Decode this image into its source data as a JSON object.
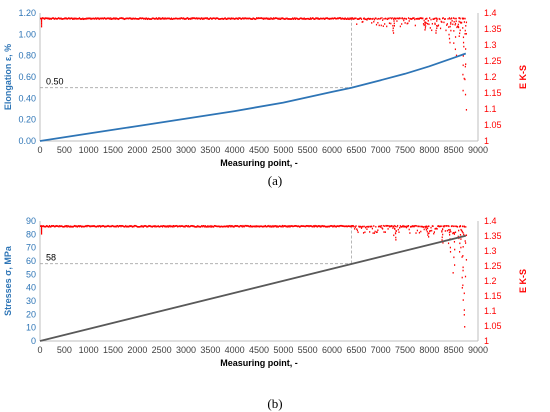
{
  "captions": [
    "(a)",
    "(b)"
  ],
  "chart_data": [
    {
      "type": "line",
      "panel": "(a)",
      "xlabel": "Measuring point, -",
      "ylabel": "Elongation ε, %",
      "y2label": "E K-S",
      "xlim": [
        0,
        9000
      ],
      "ylim": [
        0,
        1.2
      ],
      "y2lim": [
        1,
        1.4
      ],
      "xticks": [
        "0",
        "500",
        "1000",
        "1500",
        "2000",
        "2500",
        "3000",
        "3500",
        "4000",
        "4500",
        "5000",
        "5500",
        "6000",
        "6500",
        "7000",
        "7500",
        "8000",
        "8500",
        "9000"
      ],
      "yticks": [
        "0.00",
        "0.20",
        "0.40",
        "0.60",
        "0.80",
        "1.00",
        "1.20"
      ],
      "y2ticks": [
        "1",
        "1.05",
        "1.1",
        "1.15",
        "1.2",
        "1.25",
        "1.3",
        "1.35",
        "1.4"
      ],
      "reference_label": "0.50",
      "reference_point": {
        "x": 6400,
        "y": 0.5
      },
      "series": [
        {
          "axis": "left",
          "color": "#2e75b6",
          "x": [
            0,
            1000,
            2000,
            3000,
            4000,
            5000,
            6000,
            6400,
            7000,
            7500,
            8000,
            8500,
            8750
          ],
          "y": [
            0.0,
            0.07,
            0.14,
            0.21,
            0.28,
            0.36,
            0.46,
            0.5,
            0.57,
            0.63,
            0.7,
            0.78,
            0.82
          ]
        },
        {
          "axis": "right",
          "style": "scatter",
          "color": "#ff0000",
          "baseline": 1.385,
          "x_end": 8750,
          "noise_start": 6400,
          "spikes": [
            {
              "x": 7270,
              "y": 1.34
            },
            {
              "x": 7900,
              "y": 1.35
            },
            {
              "x": 8130,
              "y": 1.34
            },
            {
              "x": 8420,
              "y": 1.31
            },
            {
              "x": 8520,
              "y": 1.27
            },
            {
              "x": 8600,
              "y": 1.33
            },
            {
              "x": 8680,
              "y": 1.21
            },
            {
              "x": 8700,
              "y": 1.16
            },
            {
              "x": 8730,
              "y": 1.1
            }
          ]
        }
      ]
    },
    {
      "type": "line",
      "panel": "(b)",
      "xlabel": "Measuring point, -",
      "ylabel": "Stresses σ, MPa",
      "y2label": "E K-S",
      "xlim": [
        0,
        9000
      ],
      "ylim": [
        0,
        90
      ],
      "y2lim": [
        1,
        1.4
      ],
      "xticks": [
        "0",
        "500",
        "1000",
        "1500",
        "2000",
        "2500",
        "3000",
        "3500",
        "4000",
        "4500",
        "5000",
        "5500",
        "6000",
        "6500",
        "7000",
        "7500",
        "8000",
        "8500",
        "9000"
      ],
      "yticks": [
        "0",
        "10",
        "20",
        "30",
        "40",
        "50",
        "60",
        "70",
        "80",
        "90"
      ],
      "y2ticks": [
        "1",
        "1.05",
        "1.1",
        "1.15",
        "1.2",
        "1.25",
        "1.3",
        "1.35",
        "1.4"
      ],
      "reference_label": "58",
      "reference_point": {
        "x": 6400,
        "y": 58
      },
      "series": [
        {
          "axis": "left",
          "color": "#595959",
          "x": [
            0,
            8750
          ],
          "y": [
            0,
            79
          ]
        },
        {
          "axis": "right",
          "style": "scatter",
          "color": "#ff0000",
          "baseline": 1.385,
          "x_end": 8750,
          "noise_start": 6400,
          "spikes": [
            {
              "x": 7280,
              "y": 1.34
            },
            {
              "x": 7950,
              "y": 1.35
            },
            {
              "x": 8250,
              "y": 1.33
            },
            {
              "x": 8400,
              "y": 1.3
            },
            {
              "x": 8500,
              "y": 1.23
            },
            {
              "x": 8620,
              "y": 1.3
            },
            {
              "x": 8680,
              "y": 1.18
            },
            {
              "x": 8700,
              "y": 1.09
            },
            {
              "x": 8730,
              "y": 1.05
            }
          ]
        }
      ]
    }
  ]
}
